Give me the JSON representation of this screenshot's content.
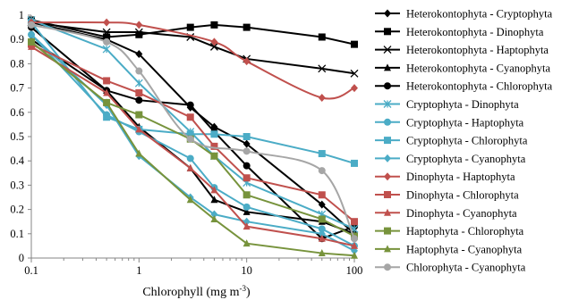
{
  "chart_data": {
    "type": "line",
    "title": "",
    "xlabel": "Chlorophyll (mg m",
    "xlabel_sup": "-3",
    "xlabel_close": ")",
    "ylabel": "",
    "xscale": "log",
    "xlim": [
      0.1,
      100
    ],
    "ylim": [
      0,
      1
    ],
    "x_ticks": [
      0.1,
      1,
      10,
      100
    ],
    "x_tick_labels": [
      "0.1",
      "1",
      "10",
      "100"
    ],
    "y_ticks": [
      0,
      0.1,
      0.2,
      0.3,
      0.4,
      0.5,
      0.6,
      0.7,
      0.8,
      0.9,
      1
    ],
    "y_tick_labels": [
      "0",
      "0.1",
      "0.2",
      "0.3",
      "0.4",
      "0.5",
      "0.6",
      "0.7",
      "0.8",
      "0.9",
      "1"
    ],
    "grid": false,
    "legend_position": "right",
    "series": [
      {
        "name": "Heterokontophyta - Cryptophyta",
        "color": "#000000",
        "marker": "diamond",
        "smooth": false,
        "x": [
          0.1,
          0.5,
          1,
          3,
          5,
          10,
          50,
          100
        ],
        "y": [
          0.97,
          0.9,
          0.84,
          0.62,
          0.54,
          0.47,
          0.22,
          0.1
        ]
      },
      {
        "name": "Heterokontophyta - Dinophyta",
        "color": "#000000",
        "marker": "square",
        "smooth": false,
        "x": [
          0.1,
          0.5,
          1,
          3,
          5,
          10,
          50,
          100
        ],
        "y": [
          0.98,
          0.91,
          0.92,
          0.95,
          0.96,
          0.95,
          0.91,
          0.88
        ]
      },
      {
        "name": "Heterokontophyta - Haptophyta",
        "color": "#000000",
        "marker": "x",
        "smooth": false,
        "x": [
          0.1,
          0.5,
          1,
          3,
          5,
          10,
          50,
          100
        ],
        "y": [
          0.97,
          0.93,
          0.93,
          0.91,
          0.87,
          0.82,
          0.78,
          0.76
        ]
      },
      {
        "name": "Heterokontophyta - Cyanophyta",
        "color": "#000000",
        "marker": "triangle",
        "smooth": false,
        "x": [
          0.1,
          0.5,
          1,
          3,
          5,
          10,
          50,
          100
        ],
        "y": [
          0.9,
          0.69,
          0.54,
          0.37,
          0.24,
          0.19,
          0.15,
          0.1
        ]
      },
      {
        "name": "Heterokontophyta - Chlorophyta",
        "color": "#000000",
        "marker": "circle",
        "smooth": false,
        "x": [
          0.1,
          0.5,
          1,
          3,
          5,
          10,
          50,
          100
        ],
        "y": [
          0.95,
          0.69,
          0.65,
          0.63,
          0.52,
          0.38,
          0.08,
          0.13
        ]
      },
      {
        "name": "Cryptophyta - Dinophyta",
        "color": "#4bacc6",
        "marker": "asterisk",
        "smooth": false,
        "x": [
          0.1,
          0.5,
          1,
          3,
          5,
          10,
          50,
          100
        ],
        "y": [
          0.98,
          0.86,
          0.72,
          0.52,
          0.42,
          0.31,
          0.18,
          0.12
        ]
      },
      {
        "name": "Cryptophyta - Haptophyta",
        "color": "#4bacc6",
        "marker": "circle",
        "smooth": false,
        "x": [
          0.1,
          0.5,
          1,
          3,
          5,
          10,
          50,
          100
        ],
        "y": [
          0.92,
          0.59,
          0.52,
          0.41,
          0.29,
          0.21,
          0.12,
          0.05
        ]
      },
      {
        "name": "Cryptophyta - Chlorophyta",
        "color": "#4bacc6",
        "marker": "square",
        "smooth": false,
        "x": [
          0.1,
          0.5,
          1,
          3,
          5,
          10,
          50,
          100
        ],
        "y": [
          0.97,
          0.58,
          0.53,
          0.51,
          0.51,
          0.5,
          0.43,
          0.39
        ]
      },
      {
        "name": "Cryptophyta - Cyanophyta",
        "color": "#4bacc6",
        "marker": "diamond",
        "smooth": false,
        "x": [
          0.1,
          0.5,
          1,
          3,
          5,
          10,
          50,
          100
        ],
        "y": [
          0.92,
          0.63,
          0.42,
          0.25,
          0.18,
          0.15,
          0.1,
          0.03
        ]
      },
      {
        "name": "Dinophyta - Haptophyta",
        "color": "#c0504d",
        "marker": "diamond",
        "smooth": true,
        "x": [
          0.1,
          0.5,
          1,
          5,
          10,
          50,
          100
        ],
        "y": [
          0.97,
          0.97,
          0.96,
          0.89,
          0.81,
          0.66,
          0.7
        ]
      },
      {
        "name": "Dinophyta - Chlorophyta",
        "color": "#c0504d",
        "marker": "square",
        "smooth": false,
        "x": [
          0.1,
          0.5,
          1,
          3,
          5,
          10,
          50,
          100
        ],
        "y": [
          0.88,
          0.73,
          0.68,
          0.58,
          0.46,
          0.33,
          0.26,
          0.15
        ]
      },
      {
        "name": "Dinophyta - Cyanophyta",
        "color": "#c0504d",
        "marker": "triangle",
        "smooth": false,
        "x": [
          0.1,
          0.5,
          1,
          3,
          5,
          10,
          50,
          100
        ],
        "y": [
          0.87,
          0.68,
          0.53,
          0.37,
          0.28,
          0.13,
          0.08,
          0.05
        ]
      },
      {
        "name": "Haptophyta - Chlorophyta",
        "color": "#77933c",
        "marker": "square",
        "smooth": false,
        "x": [
          0.1,
          0.5,
          1,
          3,
          5,
          10,
          50,
          100
        ],
        "y": [
          0.89,
          0.64,
          0.59,
          0.49,
          0.42,
          0.26,
          0.16,
          0.09
        ]
      },
      {
        "name": "Haptophyta - Cyanophyta",
        "color": "#77933c",
        "marker": "triangle",
        "smooth": false,
        "x": [
          0.1,
          0.5,
          1,
          3,
          5,
          10,
          50,
          100
        ],
        "y": [
          0.89,
          0.64,
          0.43,
          0.24,
          0.16,
          0.06,
          0.02,
          0.01
        ]
      },
      {
        "name": "Chlorophyta - Cyanophyta",
        "color": "#a6a6a6",
        "marker": "circle",
        "smooth": true,
        "x": [
          0.1,
          0.5,
          1,
          3,
          10,
          50,
          100
        ],
        "y": [
          0.96,
          0.89,
          0.77,
          0.49,
          0.44,
          0.36,
          0.08
        ]
      }
    ]
  }
}
